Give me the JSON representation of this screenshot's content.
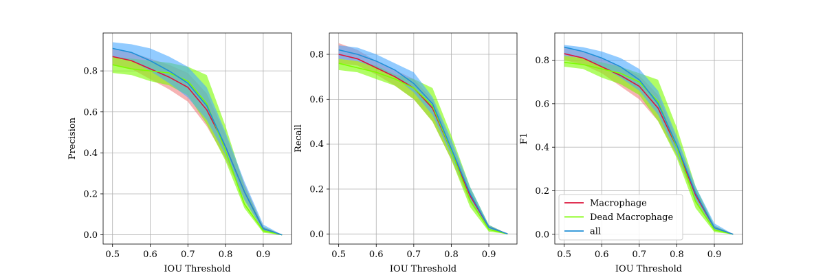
{
  "legend": {
    "placement": "lower-left",
    "panel": 2
  },
  "chart_data": [
    {
      "type": "line",
      "xlabel": "IOU Threshold",
      "ylabel": "Precision",
      "xlim": [
        0.475,
        0.975
      ],
      "ylim": [
        -0.045,
        0.985
      ],
      "grid": true,
      "xticks": [
        0.5,
        0.6,
        0.7,
        0.8,
        0.9
      ],
      "yticks": [
        0.0,
        0.2,
        0.4,
        0.6,
        0.8
      ],
      "x": [
        0.5,
        0.55,
        0.6,
        0.65,
        0.7,
        0.75,
        0.8,
        0.85,
        0.9,
        0.95
      ],
      "series": [
        {
          "name": "Macrophage",
          "color": "#dc143c",
          "band_color": "#f08080",
          "mean": [
            0.87,
            0.85,
            0.81,
            0.77,
            0.72,
            0.61,
            0.43,
            0.21,
            0.03,
            0.0
          ],
          "lower": [
            0.83,
            0.81,
            0.76,
            0.71,
            0.65,
            0.53,
            0.37,
            0.17,
            0.02,
            0.0
          ],
          "upper": [
            0.91,
            0.89,
            0.86,
            0.83,
            0.79,
            0.69,
            0.49,
            0.25,
            0.04,
            0.0
          ]
        },
        {
          "name": "Dead Macrophage",
          "color": "#7cfc00",
          "band_color": "#7cfc00",
          "mean": [
            0.83,
            0.81,
            0.8,
            0.79,
            0.75,
            0.64,
            0.41,
            0.15,
            0.02,
            0.0
          ],
          "lower": [
            0.79,
            0.78,
            0.75,
            0.73,
            0.68,
            0.54,
            0.36,
            0.13,
            0.01,
            0.0
          ],
          "upper": [
            0.87,
            0.86,
            0.85,
            0.84,
            0.82,
            0.78,
            0.53,
            0.24,
            0.04,
            0.0
          ]
        },
        {
          "name": "all",
          "color": "#1f8fd6",
          "band_color": "#4aa8ff",
          "mean": [
            0.91,
            0.89,
            0.85,
            0.8,
            0.74,
            0.63,
            0.43,
            0.21,
            0.03,
            0.0
          ],
          "lower": [
            0.87,
            0.85,
            0.8,
            0.74,
            0.67,
            0.56,
            0.39,
            0.17,
            0.02,
            0.0
          ],
          "upper": [
            0.94,
            0.93,
            0.91,
            0.87,
            0.82,
            0.72,
            0.5,
            0.26,
            0.05,
            0.0
          ]
        }
      ]
    },
    {
      "type": "line",
      "xlabel": "IOU Threshold",
      "ylabel": "Recall",
      "xlim": [
        0.475,
        0.975
      ],
      "ylim": [
        -0.045,
        0.895
      ],
      "grid": true,
      "xticks": [
        0.5,
        0.6,
        0.7,
        0.8,
        0.9
      ],
      "yticks": [
        0.0,
        0.2,
        0.4,
        0.6,
        0.8
      ],
      "x": [
        0.5,
        0.55,
        0.6,
        0.65,
        0.7,
        0.75,
        0.8,
        0.85,
        0.9,
        0.95
      ],
      "series": [
        {
          "name": "Macrophage",
          "color": "#dc143c",
          "band_color": "#f08080",
          "mean": [
            0.8,
            0.78,
            0.74,
            0.7,
            0.65,
            0.56,
            0.37,
            0.17,
            0.03,
            0.0
          ],
          "lower": [
            0.76,
            0.75,
            0.71,
            0.66,
            0.6,
            0.5,
            0.33,
            0.14,
            0.02,
            0.0
          ],
          "upper": [
            0.85,
            0.82,
            0.77,
            0.73,
            0.69,
            0.6,
            0.41,
            0.2,
            0.04,
            0.0
          ]
        },
        {
          "name": "Dead Macrophage",
          "color": "#7cfc00",
          "band_color": "#7cfc00",
          "mean": [
            0.76,
            0.74,
            0.72,
            0.69,
            0.65,
            0.57,
            0.37,
            0.15,
            0.02,
            0.0
          ],
          "lower": [
            0.73,
            0.72,
            0.69,
            0.66,
            0.6,
            0.5,
            0.33,
            0.12,
            0.01,
            0.0
          ],
          "upper": [
            0.78,
            0.77,
            0.75,
            0.71,
            0.69,
            0.65,
            0.44,
            0.21,
            0.04,
            0.0
          ]
        },
        {
          "name": "all",
          "color": "#1f8fd6",
          "band_color": "#4aa8ff",
          "mean": [
            0.82,
            0.8,
            0.77,
            0.73,
            0.67,
            0.58,
            0.38,
            0.18,
            0.03,
            0.0
          ],
          "lower": [
            0.78,
            0.77,
            0.74,
            0.7,
            0.63,
            0.53,
            0.35,
            0.15,
            0.02,
            0.0
          ],
          "upper": [
            0.84,
            0.83,
            0.8,
            0.76,
            0.72,
            0.61,
            0.42,
            0.21,
            0.04,
            0.0
          ]
        }
      ]
    },
    {
      "type": "line",
      "xlabel": "IOU Threshold",
      "ylabel": "F1",
      "xlim": [
        0.475,
        0.975
      ],
      "ylim": [
        -0.045,
        0.925
      ],
      "grid": true,
      "xticks": [
        0.5,
        0.6,
        0.7,
        0.8,
        0.9
      ],
      "yticks": [
        0.0,
        0.2,
        0.4,
        0.6,
        0.8
      ],
      "x": [
        0.5,
        0.55,
        0.6,
        0.65,
        0.7,
        0.75,
        0.8,
        0.85,
        0.9,
        0.95
      ],
      "series": [
        {
          "name": "Macrophage",
          "color": "#dc143c",
          "band_color": "#f08080",
          "mean": [
            0.83,
            0.81,
            0.77,
            0.73,
            0.68,
            0.58,
            0.4,
            0.18,
            0.03,
            0.0
          ],
          "lower": [
            0.8,
            0.78,
            0.74,
            0.68,
            0.62,
            0.52,
            0.36,
            0.15,
            0.02,
            0.0
          ],
          "upper": [
            0.86,
            0.84,
            0.81,
            0.77,
            0.73,
            0.64,
            0.44,
            0.21,
            0.04,
            0.0
          ]
        },
        {
          "name": "Dead Macrophage",
          "color": "#7cfc00",
          "band_color": "#7cfc00",
          "mean": [
            0.79,
            0.78,
            0.76,
            0.74,
            0.7,
            0.61,
            0.4,
            0.15,
            0.02,
            0.0
          ],
          "lower": [
            0.77,
            0.76,
            0.72,
            0.69,
            0.64,
            0.52,
            0.35,
            0.12,
            0.01,
            0.0
          ],
          "upper": [
            0.82,
            0.81,
            0.79,
            0.77,
            0.74,
            0.71,
            0.49,
            0.22,
            0.04,
            0.0
          ]
        },
        {
          "name": "all",
          "color": "#1f8fd6",
          "band_color": "#4aa8ff",
          "mean": [
            0.86,
            0.84,
            0.81,
            0.77,
            0.71,
            0.6,
            0.41,
            0.19,
            0.03,
            0.0
          ],
          "lower": [
            0.82,
            0.81,
            0.77,
            0.72,
            0.66,
            0.55,
            0.37,
            0.16,
            0.02,
            0.0
          ],
          "upper": [
            0.87,
            0.86,
            0.84,
            0.81,
            0.76,
            0.66,
            0.45,
            0.22,
            0.05,
            0.0
          ]
        }
      ]
    }
  ]
}
